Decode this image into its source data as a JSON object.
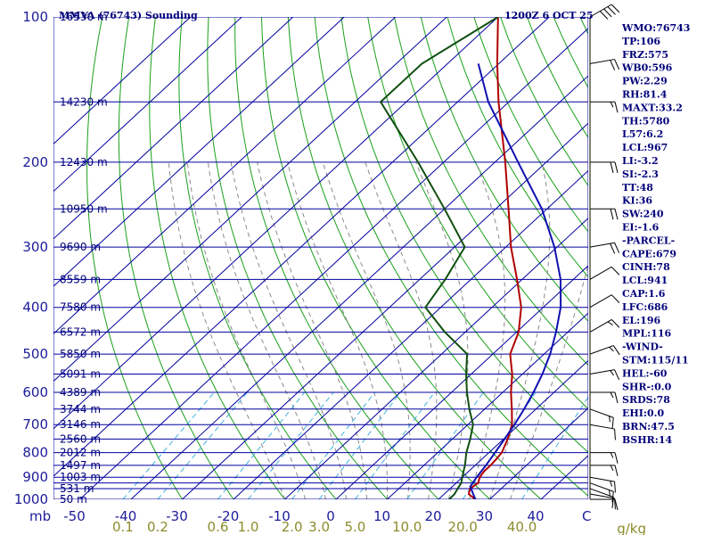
{
  "chart_data": {
    "type": "line",
    "title": "MMVA (76743) Sounding",
    "time": "1200Z  6 OCT 25",
    "pressure_labels": [
      "100",
      "200",
      "300",
      "400",
      "500",
      "600",
      "700",
      "800",
      "900",
      "1000"
    ],
    "pressure_unit": "mb",
    "isobars": [
      100,
      150,
      200,
      250,
      300,
      350,
      400,
      450,
      500,
      550,
      600,
      650,
      700,
      750,
      800,
      850,
      900,
      925,
      950,
      1000
    ],
    "height_labels": [
      {
        "p": 100,
        "h": "16530 m"
      },
      {
        "p": 150,
        "h": "14230 m"
      },
      {
        "p": 200,
        "h": "12430 m"
      },
      {
        "p": 250,
        "h": "10950 m"
      },
      {
        "p": 300,
        "h": "9690 m"
      },
      {
        "p": 350,
        "h": "8559 m"
      },
      {
        "p": 400,
        "h": "7580 m"
      },
      {
        "p": 450,
        "h": "6572 m"
      },
      {
        "p": 500,
        "h": "5850 m"
      },
      {
        "p": 550,
        "h": "5091 m"
      },
      {
        "p": 600,
        "h": "4389 m"
      },
      {
        "p": 650,
        "h": "3744 m"
      },
      {
        "p": 700,
        "h": "3146 m"
      },
      {
        "p": 750,
        "h": "2560 m"
      },
      {
        "p": 800,
        "h": "2012 m"
      },
      {
        "p": 850,
        "h": "1497 m"
      },
      {
        "p": 900,
        "h": "1003 m"
      },
      {
        "p": 950,
        "h": "531 m"
      },
      {
        "p": 1000,
        "h": "50 m"
      }
    ],
    "temperature_labels": [
      "-50",
      "-40",
      "-30",
      "-20",
      "-10",
      "0",
      "10",
      "20",
      "30",
      "40"
    ],
    "temperature_label_c": "C",
    "mixing_ratio_labels": [
      "0.1",
      "0.2",
      "0.6",
      "1.0",
      "2.0",
      "3.0",
      "5.0",
      "10.0",
      "20.0",
      "40.0"
    ],
    "mixing_ratio_unit": "g/kg",
    "series": [
      {
        "key": "temperature",
        "color": "#b00000",
        "points": [
          [
            1000,
            27.2
          ],
          [
            975,
            24.8
          ],
          [
            950,
            23.9
          ],
          [
            925,
            24.3
          ],
          [
            900,
            23.4
          ],
          [
            875,
            23.0
          ],
          [
            850,
            23.0
          ],
          [
            825,
            22.8
          ],
          [
            800,
            22.5
          ],
          [
            750,
            20.8
          ],
          [
            700,
            18.6
          ],
          [
            650,
            15.3
          ],
          [
            600,
            11.6
          ],
          [
            550,
            8.0
          ],
          [
            500,
            3.4
          ],
          [
            450,
            0.4
          ],
          [
            400,
            -4.3
          ],
          [
            350,
            -11.0
          ],
          [
            300,
            -19.0
          ],
          [
            250,
            -27.5
          ],
          [
            200,
            -38.0
          ],
          [
            150,
            -52.0
          ],
          [
            125,
            -60.3
          ],
          [
            100,
            -70.0
          ]
        ]
      },
      {
        "key": "dewpoint",
        "color": "#0f4f0f",
        "points": [
          [
            1000,
            22.1
          ],
          [
            975,
            22.0
          ],
          [
            950,
            21.5
          ],
          [
            925,
            21.0
          ],
          [
            900,
            20.0
          ],
          [
            875,
            19.0
          ],
          [
            850,
            18.0
          ],
          [
            800,
            15.6
          ],
          [
            750,
            13.5
          ],
          [
            700,
            11.0
          ],
          [
            650,
            7.0
          ],
          [
            600,
            3.0
          ],
          [
            550,
            -1.0
          ],
          [
            500,
            -5.0
          ],
          [
            450,
            -14.0
          ],
          [
            400,
            -23.0
          ],
          [
            350,
            -25.0
          ],
          [
            300,
            -28.0
          ],
          [
            250,
            -40.0
          ],
          [
            200,
            -55.0
          ],
          [
            150,
            -75.0
          ],
          [
            125,
            -75.0
          ],
          [
            100,
            -70.0
          ]
        ]
      },
      {
        "key": "parcel",
        "color": "#1010b0",
        "points": [
          [
            1000,
            27.2
          ],
          [
            941,
            23.5
          ],
          [
            900,
            22.8
          ],
          [
            850,
            22.1
          ],
          [
            800,
            21.2
          ],
          [
            750,
            20.2
          ],
          [
            700,
            19.1
          ],
          [
            650,
            17.7
          ],
          [
            600,
            16.0
          ],
          [
            550,
            13.9
          ],
          [
            500,
            11.2
          ],
          [
            450,
            7.7
          ],
          [
            400,
            3.4
          ],
          [
            350,
            -2.5
          ],
          [
            300,
            -10.5
          ],
          [
            250,
            -21.0
          ],
          [
            200,
            -35.5
          ],
          [
            150,
            -54.0
          ],
          [
            125,
            -64.0
          ]
        ]
      }
    ],
    "wind_barbs": [
      {
        "p": 1000,
        "dir": 90,
        "kt": 10
      },
      {
        "p": 975,
        "dir": 100,
        "kt": 10
      },
      {
        "p": 950,
        "dir": 110,
        "kt": 10
      },
      {
        "p": 925,
        "dir": 110,
        "kt": 15
      },
      {
        "p": 900,
        "dir": 100,
        "kt": 15
      },
      {
        "p": 850,
        "dir": 90,
        "kt": 15
      },
      {
        "p": 800,
        "dir": 90,
        "kt": 15
      },
      {
        "p": 700,
        "dir": 100,
        "kt": 10
      },
      {
        "p": 650,
        "dir": 110,
        "kt": 15
      },
      {
        "p": 600,
        "dir": 90,
        "kt": 15
      },
      {
        "p": 550,
        "dir": 80,
        "kt": 15
      },
      {
        "p": 500,
        "dir": 70,
        "kt": 15
      },
      {
        "p": 450,
        "dir": 60,
        "kt": 15
      },
      {
        "p": 400,
        "dir": 60,
        "kt": 10
      },
      {
        "p": 350,
        "dir": 60,
        "kt": 10
      },
      {
        "p": 300,
        "dir": 80,
        "kt": 20
      },
      {
        "p": 250,
        "dir": 90,
        "kt": 20
      },
      {
        "p": 200,
        "dir": 90,
        "kt": 20
      },
      {
        "p": 150,
        "dir": 90,
        "kt": 15
      },
      {
        "p": 125,
        "dir": 80,
        "kt": 20
      },
      {
        "p": 100,
        "dir": 60,
        "kt": 40
      }
    ],
    "indices": [
      "WMO:76743",
      "TP:106",
      "FRZ:575",
      "WB0:596",
      "PW:2.29",
      "RH:81.4",
      "MAXT:33.2",
      "TH:5780",
      "L57:6.2",
      "LCL:967",
      "LI:-3.2",
      "SI:-2.3",
      "TT:48",
      "KI:36",
      "SW:240",
      "EI:-1.6",
      "-PARCEL-",
      "CAPE:679",
      "CINH:78",
      "LCL:941",
      "CAP:1.6",
      "LFC:686",
      "EL:196",
      "MPL:116",
      "-WIND-",
      "STM:115/11",
      "HEL:-60",
      "SHR-:0.0",
      "SRDS:78",
      "EHI:0.0",
      "BRN:47.5",
      "BSHR:14"
    ],
    "colors": {
      "isobar": "#0000a0",
      "isotherm": "#0000a0",
      "dry_adiabat": "#1aa01a",
      "moist_adiabat": "#8a8a8a",
      "mixing_ratio": "#40b0e0",
      "text": "#00007a"
    }
  }
}
